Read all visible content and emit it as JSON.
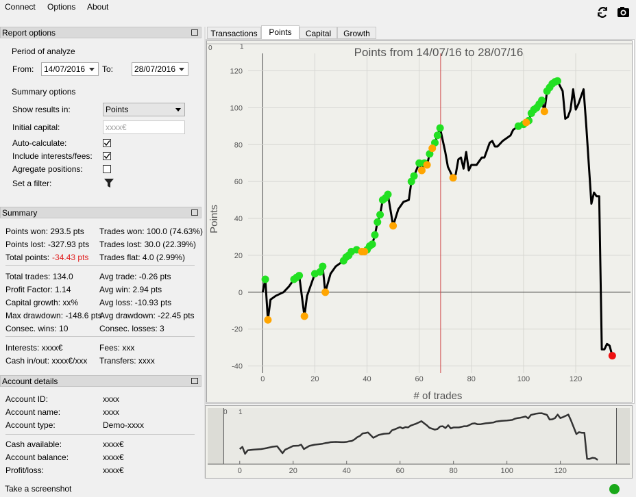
{
  "menu": [
    "Connect",
    "Options",
    "About"
  ],
  "report_options": {
    "title": "Report options",
    "period_label": "Period of analyze",
    "from_label": "From:",
    "from": "14/07/2016",
    "to_label": "To:",
    "to": "28/07/2016",
    "summary_options": "Summary options",
    "show_results_label": "Show results in:",
    "show_results": "Points",
    "initial_capital_label": "Initial capital:",
    "initial_capital_placeholder": "xxxx€",
    "checks": [
      {
        "label": "Auto-calculate:",
        "checked": true
      },
      {
        "label": "Include interests/fees:",
        "checked": true
      },
      {
        "label": "Agregate positions:",
        "checked": false
      }
    ],
    "filter_label": "Set a filter:"
  },
  "summary": {
    "title": "Summary",
    "groups": [
      [
        {
          "left": "Points won: 293.5 pts",
          "right": "Trades won: 100.0 (74.63%)"
        },
        {
          "left": "Points lost: -327.93 pts",
          "right": "Trades lost: 30.0 (22.39%)"
        },
        {
          "left": "Total points:",
          "left_value": "-34.43 pts",
          "right": "Trades flat: 4.0 (2.99%)"
        }
      ],
      [
        {
          "left": "Total trades: 134.0",
          "right": "Avg trade: -0.26 pts"
        },
        {
          "left": "Profit Factor: 1.14",
          "right": "Avg win: 2.94 pts"
        },
        {
          "left": "Capital growth: xx%",
          "right": "Avg loss: -10.93 pts"
        },
        {
          "left": "Max drawdown: -148.6 pts",
          "right": "Avg drawdown: -22.45 pts"
        },
        {
          "left": "Consec. wins: 10",
          "right": "Consec. losses: 3"
        }
      ],
      [
        {
          "left": "Interests: xxxx€",
          "right": "Fees: xxx"
        },
        {
          "left": "Cash in/out: xxxx€/xxx",
          "right": "Transfers: xxxx"
        }
      ]
    ]
  },
  "account": {
    "title": "Account details",
    "groups": [
      [
        [
          "Account ID:",
          "xxxx"
        ],
        [
          "Account name:",
          "xxxx"
        ],
        [
          "Account type:",
          "Demo-xxxx"
        ]
      ],
      [
        [
          "Cash available:",
          "xxxx€"
        ],
        [
          "Account balance:",
          "xxxx€"
        ],
        [
          "Profit/loss:",
          "xxxx€"
        ]
      ]
    ]
  },
  "tabs": {
    "items": [
      "Transactions",
      "Points",
      "Capital",
      "Growth"
    ],
    "active": 1
  },
  "chart_data": {
    "type": "line",
    "title": "Points from 14/07/16 to 28/07/16",
    "x_label": "# of trades",
    "y_label": "Points",
    "corner_labels": [
      "0",
      "1"
    ],
    "xlim": [
      -14,
      141
    ],
    "ylim": [
      -42,
      125
    ],
    "xticks": [
      0,
      20,
      40,
      60,
      80,
      100,
      120
    ],
    "yticks": [
      -40,
      -20,
      0,
      20,
      40,
      60,
      80,
      100,
      120
    ],
    "grid": true,
    "cursor_x": 68.2,
    "cursor_color": "#d04848",
    "series": [
      {
        "type": "line",
        "color": "#000000",
        "x": [
          0,
          1,
          2,
          3,
          5,
          8,
          10,
          12,
          13,
          14,
          16,
          17,
          19,
          20,
          22,
          23,
          24,
          26,
          28,
          30,
          31,
          32,
          33,
          34,
          36,
          38,
          39,
          40,
          41,
          42,
          43,
          44,
          45,
          46,
          47,
          48,
          50,
          52,
          54,
          56,
          57,
          58,
          60,
          61,
          62,
          63,
          64,
          65,
          66,
          67,
          68,
          70,
          71,
          73,
          74,
          75,
          76,
          77,
          78,
          79,
          80,
          82,
          84,
          85,
          87,
          88,
          89,
          90,
          92,
          93,
          95,
          96,
          98,
          100,
          101,
          102,
          103,
          104,
          105,
          106,
          107,
          108,
          109,
          110,
          111,
          112,
          113,
          115,
          116,
          117,
          118,
          119,
          120,
          121,
          123,
          124,
          126,
          127,
          128,
          129,
          130,
          131,
          132,
          133,
          134
        ],
        "values": [
          0,
          7,
          -15,
          -4,
          -2,
          0,
          3,
          7,
          8,
          9,
          -13,
          -2,
          6,
          10,
          11,
          14,
          0,
          10,
          14,
          16,
          17,
          19,
          20,
          22,
          23,
          22,
          22,
          23,
          25,
          26,
          31,
          38,
          42,
          50,
          51,
          53,
          36,
          45,
          49,
          50,
          60,
          63,
          70,
          66,
          70,
          69,
          75,
          78,
          81,
          85,
          89,
          76,
          68,
          62,
          64,
          72,
          73,
          67,
          76,
          66,
          69,
          69,
          73,
          73,
          81,
          82,
          79,
          79,
          82,
          83,
          85,
          88,
          90,
          91,
          92,
          93,
          97,
          99,
          100,
          102,
          104,
          98,
          109,
          111,
          113,
          114,
          114.5,
          109,
          94,
          95,
          99,
          110,
          99,
          102,
          110,
          91,
          48,
          54,
          52,
          52,
          -31,
          -31,
          -28,
          -29,
          -34.43
        ]
      },
      {
        "type": "scatter",
        "color": "#22e022",
        "x": [
          1,
          12,
          13,
          14,
          20,
          22,
          23,
          31,
          32,
          33,
          34,
          36,
          40,
          41,
          42,
          43,
          44,
          45,
          46,
          47,
          48,
          57,
          58,
          60,
          62,
          64,
          66,
          67,
          68,
          98,
          100,
          102,
          103,
          104,
          105,
          106,
          107,
          109,
          110,
          111,
          112,
          113
        ],
        "values": [
          7,
          7,
          8,
          9,
          10,
          11,
          14,
          17,
          19,
          20,
          22,
          23,
          23,
          25,
          26,
          31,
          38,
          42,
          50,
          51,
          53,
          60,
          63,
          70,
          70,
          75,
          81,
          85,
          89,
          90,
          91,
          93,
          97,
          99,
          100,
          102,
          104,
          109,
          111,
          113,
          114,
          114.5
        ]
      },
      {
        "type": "scatter",
        "color": "#ffa500",
        "x": [
          2,
          16,
          24,
          38,
          39,
          50,
          61,
          63,
          65,
          73,
          101,
          108
        ],
        "values": [
          -15,
          -13,
          0,
          22,
          22,
          36,
          66,
          69,
          78,
          62,
          92,
          98
        ]
      },
      {
        "type": "scatter",
        "color": "#ee1111",
        "x": [
          134
        ],
        "values": [
          -34.43
        ]
      }
    ]
  },
  "overview": {
    "corner_labels": [
      "0",
      "1"
    ],
    "xlim": [
      -12,
      146
    ],
    "ylim": [
      -48,
      131
    ],
    "xticks": [
      0,
      20,
      40,
      60,
      80,
      100,
      120
    ],
    "region": [
      -6,
      141
    ],
    "color": "#333333"
  },
  "status": {
    "screenshot": "Take a screenshot",
    "connected": true
  }
}
